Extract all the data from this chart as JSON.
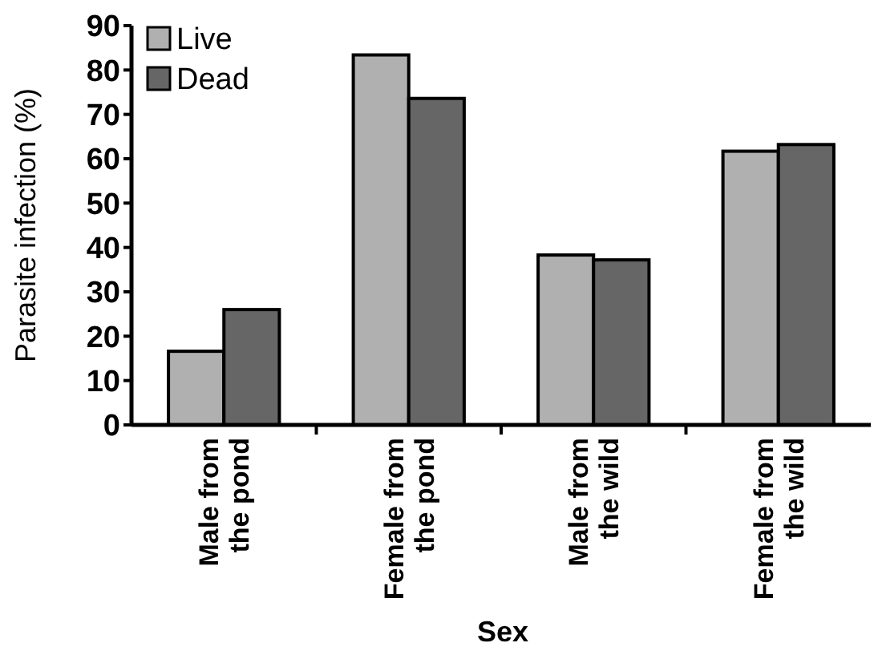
{
  "chart_data": {
    "type": "bar",
    "xlabel": "Sex",
    "ylabel": "Parasite infection (%)",
    "categories": [
      "Male from the pond",
      "Female from the pond",
      "Male from the wild",
      "Female from the wild"
    ],
    "series": [
      {
        "name": "Live",
        "color": "#b0b0b0",
        "values": [
          16.6,
          83.4,
          38.3,
          61.7
        ]
      },
      {
        "name": "Dead",
        "color": "#666666",
        "values": [
          26,
          73.6,
          37.2,
          63.2
        ]
      }
    ],
    "ylim": [
      0,
      90
    ],
    "yticks": [
      0,
      10,
      20,
      30,
      40,
      50,
      60,
      70,
      80,
      90
    ],
    "grid": false,
    "legend": "top left"
  }
}
